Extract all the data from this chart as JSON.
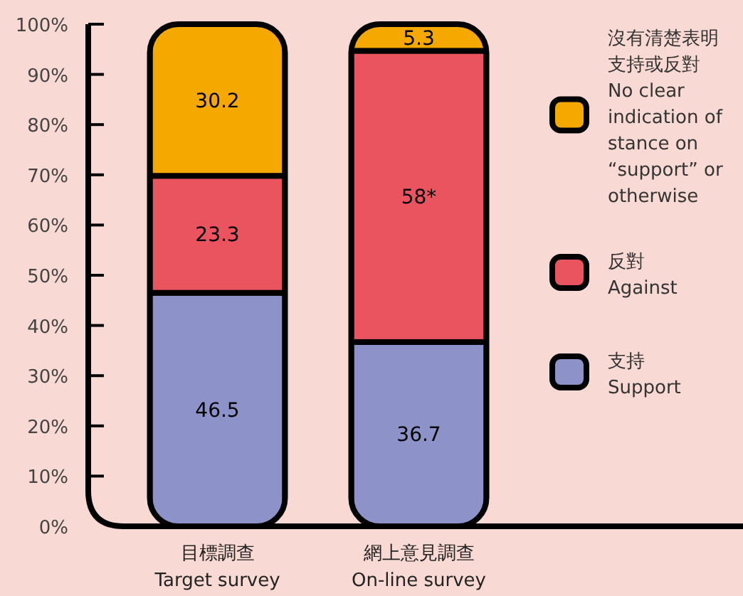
{
  "chart_data": {
    "type": "bar",
    "stacked": true,
    "categories": [
      "目標調查\nTarget survey",
      "網上意見調查\nOn-line survey"
    ],
    "series": [
      {
        "name": "支持\nSupport",
        "color": "#8d93c8",
        "values": [
          46.5,
          36.7
        ],
        "value_labels": [
          "46.5",
          "36.7"
        ]
      },
      {
        "name": "反對\nAgainst",
        "color": "#e9545f",
        "values": [
          23.3,
          58
        ],
        "value_labels": [
          "23.3",
          "58*"
        ]
      },
      {
        "name": "沒有清楚表明支持或反對\nNo clear indication of stance on “support” or otherwise",
        "color": "#f5a800",
        "values": [
          30.2,
          5.3
        ],
        "value_labels": [
          "30.2",
          "5.3"
        ]
      }
    ],
    "ylim": [
      0,
      100
    ],
    "yticks": [
      {
        "value": 0,
        "label": "0%"
      },
      {
        "value": 10,
        "label": "10%"
      },
      {
        "value": 20,
        "label": "20%"
      },
      {
        "value": 30,
        "label": "30%"
      },
      {
        "value": 40,
        "label": "40%"
      },
      {
        "value": 50,
        "label": "50%"
      },
      {
        "value": 60,
        "label": "60%"
      },
      {
        "value": 70,
        "label": "70%"
      },
      {
        "value": 80,
        "label": "80%"
      },
      {
        "value": 90,
        "label": "90%"
      },
      {
        "value": 100,
        "label": "100%"
      }
    ],
    "grid": false,
    "legend": "right"
  }
}
